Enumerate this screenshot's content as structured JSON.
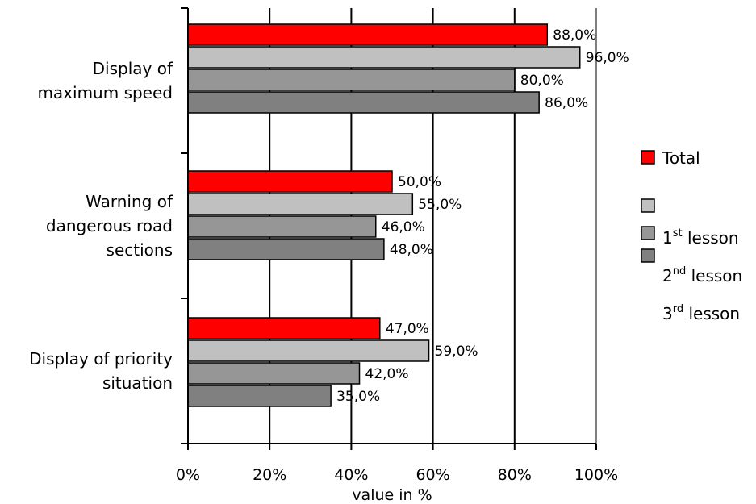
{
  "chart_data": {
    "type": "bar",
    "orientation": "horizontal",
    "title": "",
    "xlabel": "value in %",
    "ylabel": "",
    "xlim": [
      0,
      100
    ],
    "x_ticks": [
      "0%",
      "20%",
      "40%",
      "60%",
      "80%",
      "100%"
    ],
    "grid": true,
    "legend_position": "right",
    "categories": [
      [
        "Display of",
        "maximum speed"
      ],
      [
        "Warning of",
        "dangerous road",
        "sections"
      ],
      [
        "Display of priority",
        "situation"
      ]
    ],
    "series": [
      {
        "color": "#ff0000",
        "values": [
          88.0,
          50.0,
          47.0
        ],
        "labels": [
          "88,0%",
          "50,0%",
          "47,0%"
        ]
      },
      {
        "color": "#c0c0c0",
        "values": [
          96.0,
          55.0,
          59.0
        ],
        "labels": [
          "96,0%",
          "55,0%",
          "59,0%"
        ]
      },
      {
        "color": "#969696",
        "values": [
          80.0,
          46.0,
          42.0
        ],
        "labels": [
          "80,0%",
          "46,0%",
          "42,0%"
        ]
      },
      {
        "color": "#808080",
        "values": [
          86.0,
          48.0,
          35.0
        ],
        "labels": [
          "86,0%",
          "48,0%",
          "35,0%"
        ]
      }
    ],
    "legend": {
      "entries": [
        {
          "color": "#ff0000",
          "text": "Total"
        },
        {
          "color": "#c0c0c0",
          "text": ""
        },
        {
          "color": "#969696",
          "text": "1",
          "sup": "st",
          "suffix": " lesson"
        },
        {
          "color": "#808080",
          "text": "2",
          "sup": "nd",
          "suffix": " lesson"
        },
        {
          "color": "",
          "text": "3",
          "sup": "rd",
          "suffix": " lesson"
        }
      ]
    }
  }
}
